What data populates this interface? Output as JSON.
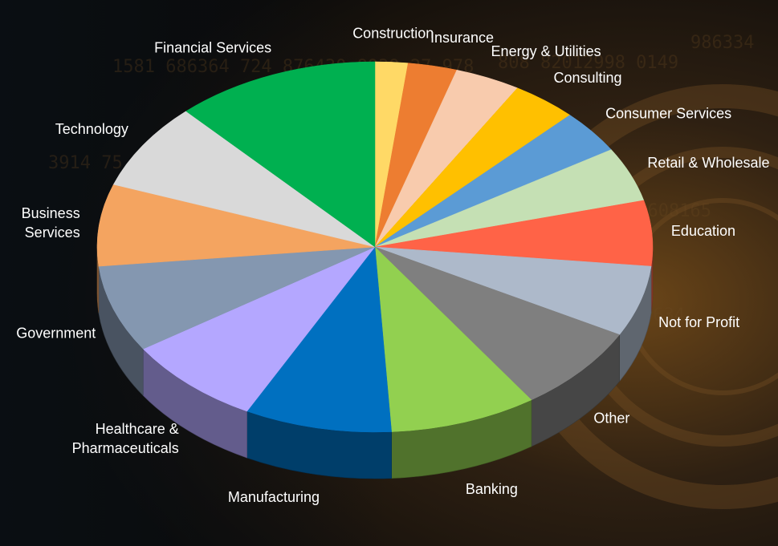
{
  "chart_data": {
    "type": "pie",
    "title": "",
    "legend": "none",
    "start_angle_deg": 0,
    "direction": "clockwise",
    "categories": [
      "Construction",
      "Insurance",
      "Energy & Utilities",
      "Consulting",
      "Consumer Services",
      "Retail & Wholesale",
      "Education",
      "Not for Profit",
      "Other",
      "Banking",
      "Manufacturing",
      "Healthcare & Pharmaceuticals",
      "Government",
      "Business Services",
      "Technology",
      "Financial Services"
    ],
    "values": [
      2.0,
      3.0,
      4.0,
      4.0,
      4.0,
      5.0,
      6.0,
      6.5,
      8.0,
      9.0,
      9.0,
      8.5,
      8.0,
      7.5,
      8.0,
      12.5
    ],
    "colors": [
      "#ffd966",
      "#ed7d31",
      "#f8cbad",
      "#ffc000",
      "#5b9bd5",
      "#c5e0b4",
      "#ff6347",
      "#adb9ca",
      "#7f7f7f",
      "#92d050",
      "#0070c0",
      "#b4a7ff",
      "#8497b0",
      "#f4a460",
      "#d9d9d9",
      "#00b050"
    ]
  },
  "labels": [
    {
      "text": "Construction"
    },
    {
      "text": "Insurance"
    },
    {
      "text": "Energy & Utilities"
    },
    {
      "text": "Consulting"
    },
    {
      "text": "Consumer Services"
    },
    {
      "text": "Retail & Wholesale"
    },
    {
      "text": "Education"
    },
    {
      "text": "Not for Profit"
    },
    {
      "text": "Other"
    },
    {
      "text": "Banking"
    },
    {
      "text": "Manufacturing"
    },
    {
      "text": "Healthcare &",
      "text2": "Pharmaceuticals"
    },
    {
      "text": "Government"
    },
    {
      "text": "Business",
      "text2": "Services"
    },
    {
      "text": "Technology"
    },
    {
      "text": "Financial Services"
    }
  ]
}
